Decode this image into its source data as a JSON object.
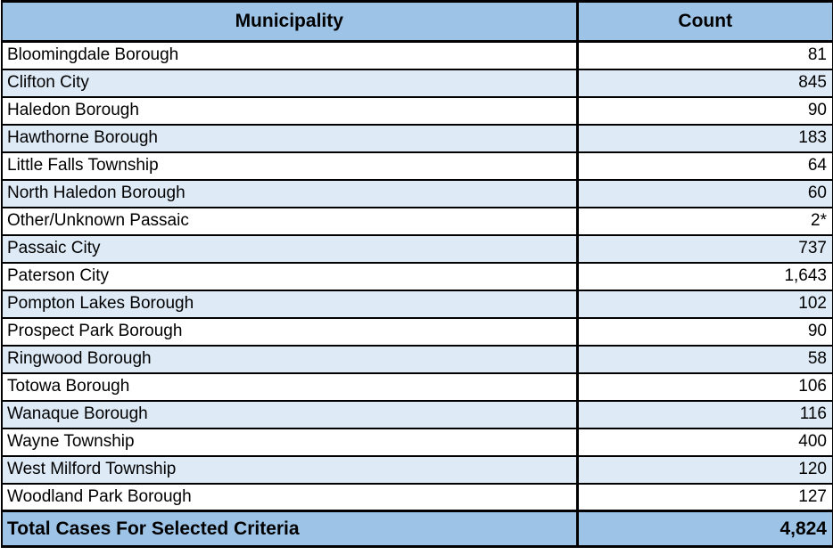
{
  "table": {
    "columns": [
      {
        "label": "Municipality"
      },
      {
        "label": "Count"
      }
    ],
    "rows": [
      {
        "municipality": "Bloomingdale Borough",
        "count": "81"
      },
      {
        "municipality": "Clifton City",
        "count": "845"
      },
      {
        "municipality": "Haledon Borough",
        "count": "90"
      },
      {
        "municipality": "Hawthorne Borough",
        "count": "183"
      },
      {
        "municipality": "Little Falls Township",
        "count": "64"
      },
      {
        "municipality": "North Haledon Borough",
        "count": "60"
      },
      {
        "municipality": "Other/Unknown Passaic",
        "count": "2*"
      },
      {
        "municipality": "Passaic City",
        "count": "737"
      },
      {
        "municipality": "Paterson City",
        "count": "1,643"
      },
      {
        "municipality": "Pompton Lakes Borough",
        "count": "102"
      },
      {
        "municipality": "Prospect Park Borough",
        "count": "90"
      },
      {
        "municipality": "Ringwood Borough",
        "count": "58"
      },
      {
        "municipality": "Totowa Borough",
        "count": "106"
      },
      {
        "municipality": "Wanaque Borough",
        "count": "116"
      },
      {
        "municipality": "Wayne Township",
        "count": "400"
      },
      {
        "municipality": "West Milford Township",
        "count": "120"
      },
      {
        "municipality": "Woodland Park Borough",
        "count": "127"
      }
    ],
    "footer": {
      "label": "Total Cases For Selected Criteria",
      "count": "4,824"
    }
  },
  "colors": {
    "header_bg": "#9DC3E6",
    "alt_row_bg": "#DEEBF7",
    "row_bg": "#FFFFFF",
    "border": "#000000",
    "text": "#000000"
  }
}
